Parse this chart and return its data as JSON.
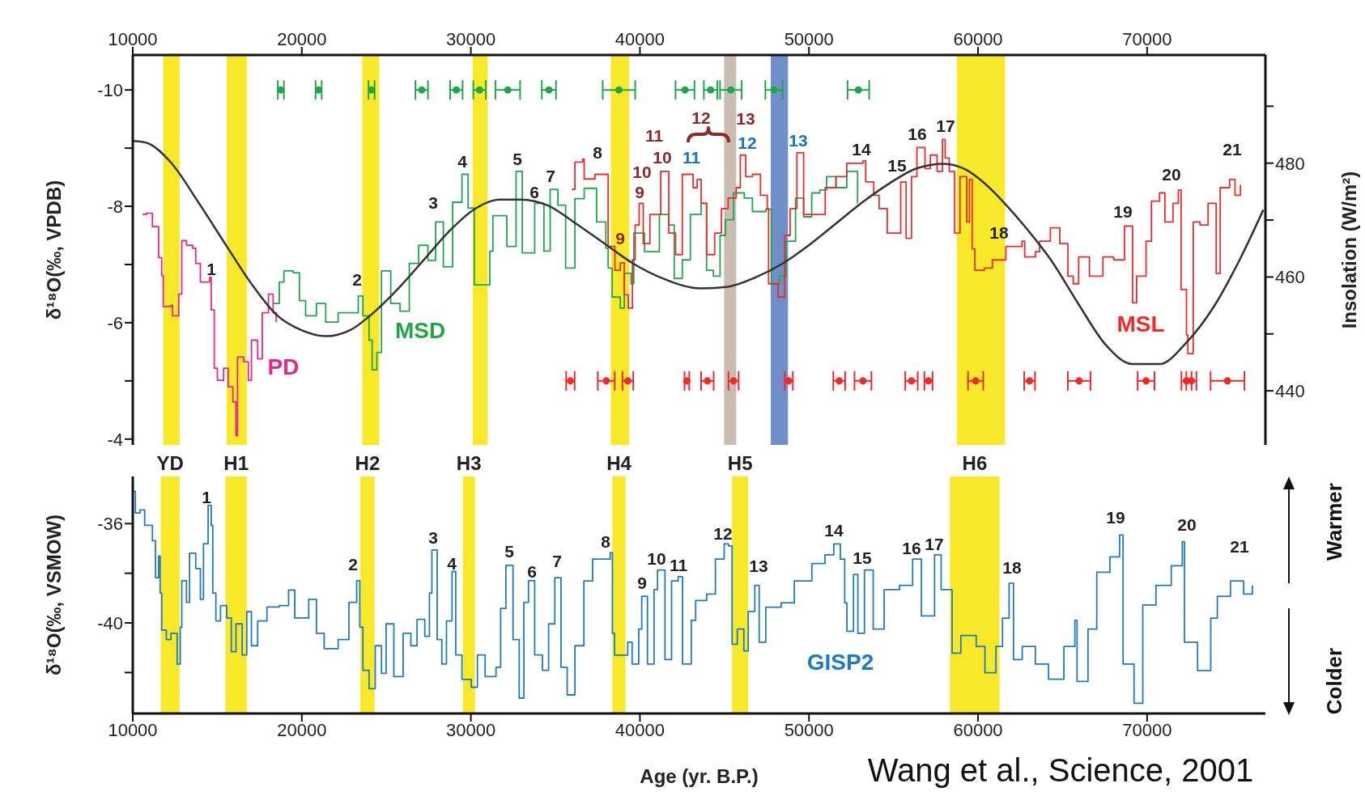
{
  "chart_data": [
    {
      "type": "step",
      "ylabel": "δ¹⁸O(‰, VPDB)",
      "y2label": "Insolation (W/m²)",
      "marker": "none",
      "xlim": [
        10000,
        77000
      ],
      "xticks": [
        10000,
        20000,
        30000,
        40000,
        50000,
        60000,
        70000
      ],
      "ylim": [
        -3.9,
        -10.6
      ],
      "yticks": [
        -10,
        {
          "value": -9,
          "label": null
        },
        -8,
        {
          "value": -7,
          "label": null
        },
        -6,
        {
          "value": -5,
          "label": null
        },
        -4
      ],
      "y2lim": [
        430.5,
        499
      ],
      "y2ticks": [
        440,
        {
          "value": 450,
          "label": null
        },
        460,
        {
          "value": 470,
          "label": null
        },
        480,
        {
          "value": 490,
          "label": null
        }
      ],
      "series": [
        {
          "name": "PD",
          "color": "#e6268c",
          "x": [
            10575,
            10795,
            11161,
            11527,
            11710,
            11802,
            12260,
            12351,
            12626,
            12717,
            12900,
            13175,
            13541,
            13724,
            14000,
            14548,
            14640,
            14823,
            15006,
            15372,
            15647,
            15922,
            16105,
            16196,
            16562,
            16837,
            17020,
            17386,
            17661,
            18027,
            18302,
            18485
          ],
          "values": [
            -7.86,
            -7.88,
            -7.65,
            -7.12,
            -6.81,
            -6.28,
            -6.3,
            -6.12,
            -6.12,
            -6.49,
            -7.41,
            -7.33,
            -7.28,
            -7.02,
            -6.7,
            -6.78,
            -6.22,
            -5.22,
            -5.01,
            -5.22,
            -4.9,
            -4.64,
            -4.06,
            -5.41,
            -5.33,
            -5.01,
            -5.7,
            -5.38,
            -6.17,
            -6.49,
            -6.17,
            -6.01
          ]
        },
        {
          "name": "MSD",
          "color": "#1fa64a",
          "x": [
            18302,
            18668,
            18943,
            19492,
            19858,
            20224,
            20865,
            21415,
            22147,
            22879,
            23337,
            23612,
            23978,
            24161,
            24436,
            24711,
            25260,
            25809,
            26358,
            26908,
            27457,
            27915,
            28372,
            28922,
            29471,
            29837,
            30203,
            30661,
            31119,
            31302,
            32126,
            32675,
            33041,
            33774,
            34323,
            34689,
            35147,
            35605,
            36154,
            36703,
            37436,
            37985,
            38120,
            38360,
            38838,
            39077,
            39476,
            39636,
            40274,
            41151,
            41709,
            42028,
            42507,
            42985,
            43623,
            43942,
            44341,
            44740,
            45059,
            45537,
            46175,
            46654,
            47451,
            47770,
            48249,
            48647,
            49206,
            49684,
            50162,
            50641,
            51040,
            51598,
            52236,
            52874
          ],
          "values": [
            -6.33,
            -6.7,
            -6.89,
            -6.86,
            -6.38,
            -6.12,
            -6.33,
            -6.01,
            -6.17,
            -6.17,
            -6.46,
            -6.12,
            -5.7,
            -5.19,
            -5.49,
            -6.89,
            -6.33,
            -6.2,
            -7.02,
            -7.33,
            -7.07,
            -7.73,
            -6.96,
            -8.07,
            -8.55,
            -7.97,
            -6.65,
            -6.65,
            -7.23,
            -7.84,
            -7.31,
            -8.6,
            -7.2,
            -8.05,
            -7.23,
            -8.29,
            -8.02,
            -6.94,
            -8.13,
            -8.31,
            -7.73,
            -7.28,
            -6.94,
            -6.44,
            -6.25,
            -6.85,
            -6.67,
            -7.54,
            -7.22,
            -7.86,
            -7.68,
            -6.76,
            -7.08,
            -7.86,
            -8.05,
            -6.9,
            -6.8,
            -7.5,
            -7.77,
            -8.23,
            -8.14,
            -7.91,
            -7.95,
            -6.67,
            -6.8,
            -7.4,
            -8.14,
            -7.82,
            -8.23,
            -8.28,
            -8.51,
            -8.32,
            -8.6,
            -8.05
          ]
        },
        {
          "name": "MSL",
          "color": "#ee2a2a",
          "x": [
            35971,
            36154,
            36612,
            36703,
            37344,
            37722,
            38120,
            38519,
            38838,
            39077,
            39317,
            39556,
            39716,
            39955,
            40194,
            40593,
            41231,
            41709,
            42108,
            42507,
            43145,
            43384,
            43623,
            43942,
            44421,
            44820,
            45219,
            45697,
            45936,
            46255,
            46654,
            47132,
            47531,
            47611,
            48169,
            48567,
            48886,
            49285,
            49684,
            50322,
            50960,
            51598,
            52236,
            53193,
            53353,
            53831,
            54150,
            54629,
            55107,
            55426,
            55745,
            56064,
            56384,
            56861,
            57180,
            57579,
            57897,
            58057,
            58296,
            58615,
            58934,
            59333,
            59492,
            59652,
            59812,
            60370,
            60848,
            61646,
            62603,
            62762,
            63400,
            63640,
            64278,
            64836,
            65314,
            65633,
            65952,
            66590,
            67387,
            68025,
            68663,
            69142,
            69381,
            69939,
            70258,
            70737,
            71056,
            71534,
            71853,
            72013,
            72332,
            72411,
            72730,
            73129,
            73608,
            74087,
            74326,
            74884,
            75202,
            75522
          ],
          "values": [
            -8.29,
            -8.76,
            -8.81,
            -8.47,
            -8.55,
            -8.55,
            -7.31,
            -6.9,
            -7.03,
            -6.48,
            -6.25,
            -7.08,
            -7.68,
            -8.05,
            -7.36,
            -7.86,
            -8.6,
            -7.54,
            -7.17,
            -8.55,
            -8.32,
            -8.46,
            -8.05,
            -7.17,
            -7.54,
            -7.96,
            -8.14,
            -8.32,
            -8.88,
            -8.51,
            -8.55,
            -8.19,
            -7.96,
            -6.67,
            -6.44,
            -7.5,
            -7.96,
            -8.92,
            -7.86,
            -7.86,
            -8.32,
            -8.51,
            -8.74,
            -8.78,
            -8.42,
            -8.19,
            -7.96,
            -7.54,
            -7.54,
            -8.42,
            -7.45,
            -8.51,
            -9.01,
            -8.65,
            -8.88,
            -8.6,
            -9.15,
            -8.83,
            -8.6,
            -7.54,
            -8.51,
            -7.73,
            -8.46,
            -7.27,
            -6.9,
            -6.94,
            -7.08,
            -7.31,
            -7.4,
            -7.13,
            -7.22,
            -7.4,
            -7.63,
            -7.36,
            -6.8,
            -6.67,
            -7.13,
            -6.8,
            -7.13,
            -7.08,
            -7.66,
            -6.34,
            -6.8,
            -7.4,
            -8.09,
            -8.23,
            -7.73,
            -8.05,
            -8.28,
            -6.57,
            -5.79,
            -5.47,
            -7.73,
            -7.68,
            -8.05,
            -6.85,
            -8.32,
            -8.46,
            -8.19,
            -8.37
          ]
        },
        {
          "type": "line",
          "axis": "y2",
          "color": "#333333",
          "x": [
            10062,
            10795,
            12260,
            13908,
            15556,
            17020,
            18485,
            19950,
            21415,
            22879,
            24344,
            25809,
            27274,
            28739,
            30203,
            31668,
            32950,
            34598,
            36063,
            37894,
            39636,
            41231,
            43623,
            45219,
            46814,
            48408,
            50003,
            51598,
            53193,
            54787,
            56384,
            57977,
            59253,
            60370,
            61646,
            62762,
            64357,
            65952,
            67547,
            69142,
            70737,
            72332,
            73927,
            75522,
            76878
          ],
          "values": [
            483.9,
            483.6,
            480.1,
            473.0,
            465.4,
            458.8,
            453.4,
            450.7,
            449.6,
            450.7,
            454.0,
            458.3,
            463.2,
            468.1,
            471.9,
            473.6,
            473.6,
            472.5,
            469.7,
            465.9,
            462.3,
            459.9,
            458.0,
            458.3,
            459.9,
            462.3,
            465.6,
            469.4,
            473.2,
            476.5,
            479.1,
            479.9,
            478.9,
            476.5,
            472.7,
            468.9,
            462.8,
            455.2,
            448.1,
            444.7,
            444.7,
            448.5,
            454.7,
            463.3,
            471.8
          ]
        },
        {
          "type": "scatter",
          "marker": "circle",
          "color": "#1fa64a",
          "x": [
            18760,
            20993,
            24124,
            27091,
            29141,
            30514,
            32181,
            34616,
            38758,
            42666,
            44181,
            45378,
            47930,
            52922
          ],
          "values": [
            -10,
            -10,
            -10,
            -10,
            -10,
            -10,
            -10,
            -10,
            -10,
            -10,
            -10,
            -10,
            -10,
            -10
          ],
          "xerrors": [
            180,
            180,
            180,
            370,
            370,
            370,
            730,
            420,
            960,
            560,
            400,
            640,
            510,
            640
          ]
        },
        {
          "type": "scatter",
          "marker": "circle",
          "color": "#ee2a2a",
          "x": [
            35887,
            38009,
            39285,
            42778,
            43990,
            45537,
            48807,
            51789,
            53193,
            56064,
            57068,
            59859,
            63049,
            65984,
            69940,
            72332,
            72618,
            74757
          ],
          "values": [
            -5,
            -5,
            -5,
            -5,
            -5,
            -5,
            -5,
            -5,
            -5,
            -5,
            -5,
            -5,
            -5,
            -5,
            -5,
            -5,
            -5,
            -5
          ],
          "xerrors": [
            250,
            500,
            320,
            140,
            370,
            300,
            240,
            350,
            500,
            370,
            240,
            450,
            320,
            670,
            500,
            300,
            300,
            1000
          ]
        }
      ],
      "bands": [
        {
          "axis": "x",
          "from": 11802,
          "to": 12772,
          "color": "#f7e92a"
        },
        {
          "axis": "x",
          "from": 15555,
          "to": 16746,
          "color": "#f7e92a"
        },
        {
          "axis": "x",
          "from": 23575,
          "to": 24582,
          "color": "#f7e92a"
        },
        {
          "axis": "x",
          "from": 30112,
          "to": 30991,
          "color": "#f7e92a"
        },
        {
          "axis": "x",
          "from": 38280,
          "to": 39364,
          "color": "#f7e92a"
        },
        {
          "axis": "x",
          "from": 44979,
          "to": 45697,
          "color": "#c8bdb0"
        },
        {
          "axis": "x",
          "from": 47738,
          "to": 48759,
          "color": "#6f8fca"
        },
        {
          "axis": "x",
          "from": 58743,
          "to": 61598,
          "color": "#f7e92a"
        }
      ],
      "annotations": [
        "1",
        "2",
        "3",
        "4",
        "5",
        "6",
        "7",
        "8",
        "9",
        "9",
        "10",
        "11",
        "10",
        "11",
        "12",
        "13",
        "12",
        "13",
        "14",
        "15",
        "16",
        "17",
        "18",
        "19",
        "20",
        "21"
      ]
    },
    {
      "type": "step",
      "xlabel": "Age (yr. B.P.)",
      "ylabel": "δ¹⁸O(‰, VSMOW)",
      "marker": "none",
      "xlim": [
        10000,
        77000
      ],
      "xticks": [
        10000,
        20000,
        30000,
        40000,
        50000,
        60000,
        70000
      ],
      "ylim": [
        -43.65,
        -34.1
      ],
      "yticks": [
        {
          "value": -42,
          "label": null
        },
        -40,
        {
          "value": -38,
          "label": null
        },
        -36
      ],
      "series": [
        {
          "name": "GISP2",
          "color": "#1f7ac2",
          "x": [
            10026,
            10154,
            10429,
            10703,
            11161,
            11344,
            11527,
            11619,
            11710,
            11985,
            12260,
            12626,
            12809,
            12900,
            13175,
            13358,
            13724,
            14000,
            14183,
            14457,
            14640,
            14732,
            14915,
            15189,
            15556,
            15830,
            16105,
            16471,
            16745,
            17020,
            17386,
            17936,
            18668,
            19217,
            19583,
            20407,
            20865,
            21323,
            22147,
            22788,
            23246,
            23429,
            23612,
            23978,
            24344,
            24711,
            24985,
            25443,
            25992,
            26450,
            26816,
            27274,
            27548,
            27695,
            28006,
            28281,
            28556,
            28885,
            29105,
            29471,
            30020,
            30386,
            30844,
            31485,
            31760,
            32071,
            32492,
            32858,
            33133,
            33408,
            33774,
            34232,
            34598,
            34964,
            35330,
            35697,
            36154,
            36685,
            37204,
            38111,
            38241,
            38371,
            38500,
            39019,
            39278,
            39538,
            39927,
            40108,
            40445,
            40834,
            41041,
            41482,
            41871,
            42260,
            42520,
            43038,
            43297,
            43946,
            44464,
            44983,
            45242,
            45450,
            45759,
            46148,
            46407,
            46796,
            47055,
            47444,
            48354,
            49132,
            50169,
            50946,
            51466,
            51855,
            52114,
            52244,
            52632,
            52892,
            53281,
            53799,
            54447,
            55355,
            56132,
            56651,
            57429,
            57818,
            58466,
            58985,
            59892,
            60411,
            61059,
            61448,
            61837,
            62097,
            62615,
            63393,
            64171,
            65079,
            65727,
            65857,
            66505,
            67024,
            67802,
            68372,
            68580,
            69228,
            69747,
            70525,
            71432,
            72081,
            72210,
            72988,
            73766,
            74155,
            74933,
            75711,
            76230
          ],
          "values": [
            -34.7,
            -35.57,
            -35.45,
            -36.07,
            -36.69,
            -38.18,
            -37.31,
            -38.8,
            -40.29,
            -40.67,
            -40.42,
            -41.66,
            -40.17,
            -38.3,
            -39.17,
            -37.19,
            -37.81,
            -39.05,
            -36.81,
            -35.26,
            -36.07,
            -38.8,
            -39.92,
            -39.3,
            -39.8,
            -41.16,
            -40.04,
            -41.29,
            -39.55,
            -40.92,
            -39.92,
            -39.36,
            -39.3,
            -38.68,
            -39.8,
            -39.05,
            -40.42,
            -41.04,
            -40.67,
            -39.17,
            -38.3,
            -40.17,
            -41.91,
            -42.65,
            -40.92,
            -42.03,
            -40.04,
            -42.16,
            -40.42,
            -40.92,
            -39.86,
            -40.54,
            -38.8,
            -37.06,
            -40.67,
            -41.66,
            -39.92,
            -37.93,
            -41.29,
            -42.28,
            -42.59,
            -41.29,
            -42.16,
            -41.79,
            -39.42,
            -37.68,
            -40.67,
            -43.03,
            -39.17,
            -38.3,
            -41.29,
            -41.91,
            -40.04,
            -38.18,
            -41.79,
            -42.9,
            -40.92,
            -38.31,
            -37.43,
            -37.43,
            -37.17,
            -40.42,
            -41.3,
            -41.3,
            -40.78,
            -41.66,
            -40.25,
            -38.93,
            -41.66,
            -38.66,
            -37.87,
            -41.48,
            -38.31,
            -38.14,
            -41.66,
            -39.9,
            -39.1,
            -38.84,
            -37.43,
            -36.82,
            -36.9,
            -40.86,
            -40.25,
            -41.13,
            -39.54,
            -38.49,
            -40.78,
            -39.37,
            -39.19,
            -38.31,
            -37.61,
            -37.26,
            -36.82,
            -37.43,
            -39.19,
            -40.34,
            -38.05,
            -40.42,
            -37.87,
            -40.25,
            -38.66,
            -38.49,
            -37.43,
            -39.72,
            -37.26,
            -38.66,
            -41.22,
            -40.51,
            -40.95,
            -42.01,
            -40.95,
            -39.81,
            -38.4,
            -41.48,
            -40.95,
            -41.66,
            -42.27,
            -40.95,
            -39.9,
            -42.36,
            -40.25,
            -37.96,
            -37.34,
            -36.46,
            -41.66,
            -43.24,
            -39.28,
            -38.49,
            -37.7,
            -36.73,
            -40.78,
            -41.92,
            -39.81,
            -38.93,
            -38.31,
            -38.84,
            -38.49
          ]
        }
      ],
      "bands": [
        {
          "axis": "x",
          "from": 11655,
          "to": 12772,
          "label": "YD",
          "color": "#f7e92a"
        },
        {
          "axis": "x",
          "from": 15482,
          "to": 16745,
          "label": "H1",
          "color": "#f7e92a"
        },
        {
          "axis": "x",
          "from": 23465,
          "to": 24307,
          "label": "H2",
          "color": "#f7e92a"
        },
        {
          "axis": "x",
          "from": 29525,
          "to": 30240,
          "label": "H3",
          "color": "#f7e92a"
        },
        {
          "axis": "x",
          "from": 38371,
          "to": 39149,
          "label": "H4",
          "color": "#f7e92a"
        },
        {
          "axis": "x",
          "from": 45450,
          "to": 46407,
          "label": "H5",
          "color": "#f7e92a"
        },
        {
          "axis": "x",
          "from": 58337,
          "to": 61267,
          "label": "H6",
          "color": "#f7e92a"
        }
      ],
      "annotations": [
        "1",
        "2",
        "3",
        "4",
        "5",
        "6",
        "7",
        "8",
        "9",
        "10",
        "11",
        "12",
        "13",
        "14",
        "15",
        "16",
        "17",
        "18",
        "19",
        "20",
        "21",
        "Warmer",
        "Colder",
        "Wang et al., Science, 2001"
      ]
    }
  ]
}
